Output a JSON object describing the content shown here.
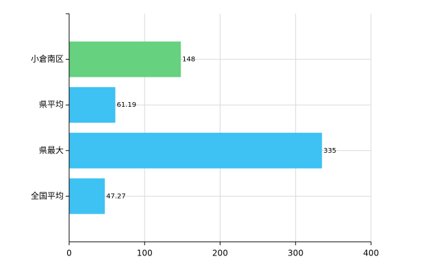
{
  "chart_data": {
    "type": "bar",
    "orientation": "horizontal",
    "categories": [
      "小倉南区",
      "県平均",
      "県最大",
      "全国平均"
    ],
    "values": [
      148,
      61.19,
      335,
      47.27
    ],
    "colors": [
      "#66d17f",
      "#3ec1f3",
      "#3ec1f3",
      "#3ec1f3"
    ],
    "xlim": [
      0,
      400
    ],
    "xticks": [
      0,
      100,
      200,
      300,
      400
    ],
    "grid": true
  }
}
